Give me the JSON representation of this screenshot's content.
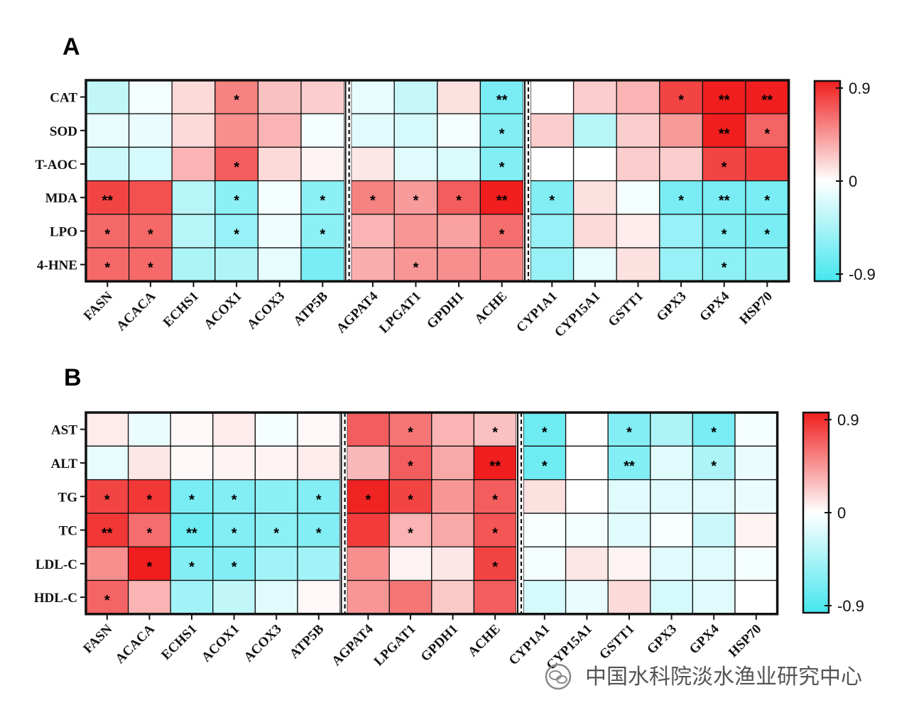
{
  "chart_data": [
    {
      "type": "heatmap",
      "panel": "A",
      "rows": [
        "CAT",
        "SOD",
        "T-AOC",
        "MDA",
        "LPO",
        "4-HNE"
      ],
      "columns": [
        "FASN",
        "ACACA",
        "ECHS1",
        "ACOX1",
        "ACOX3",
        "ATP5B",
        "AGPAT4",
        "LPGAT1",
        "GPDH1",
        "ACHE",
        "CYP1A1",
        "CYP15A1",
        "GSTT1",
        "GPX3",
        "GPX4",
        "HSP70"
      ],
      "group_separators_after_column": [
        5,
        9
      ],
      "values": [
        [
          -0.3,
          -0.05,
          0.15,
          0.5,
          0.25,
          0.2,
          -0.12,
          -0.28,
          0.12,
          -0.65,
          0.0,
          0.2,
          0.3,
          0.75,
          0.9,
          0.9
        ],
        [
          -0.12,
          -0.1,
          0.15,
          0.45,
          0.3,
          -0.05,
          -0.15,
          -0.2,
          -0.05,
          -0.6,
          0.2,
          -0.35,
          0.2,
          0.4,
          0.9,
          0.62
        ],
        [
          -0.25,
          -0.2,
          0.3,
          0.65,
          0.15,
          0.05,
          0.1,
          -0.15,
          -0.18,
          -0.6,
          0.0,
          0.0,
          0.2,
          0.2,
          0.75,
          0.78
        ],
        [
          0.75,
          0.7,
          -0.35,
          -0.55,
          -0.05,
          -0.55,
          0.5,
          0.4,
          0.65,
          0.95,
          -0.6,
          0.12,
          -0.05,
          -0.65,
          -0.65,
          -0.65
        ],
        [
          0.6,
          0.6,
          -0.35,
          -0.5,
          -0.08,
          -0.55,
          0.3,
          0.42,
          0.38,
          0.58,
          -0.5,
          0.15,
          0.08,
          -0.5,
          -0.6,
          -0.65
        ],
        [
          0.6,
          0.6,
          -0.4,
          -0.38,
          -0.12,
          -0.65,
          0.32,
          0.42,
          0.45,
          0.48,
          -0.5,
          -0.12,
          0.12,
          -0.5,
          -0.55,
          -0.55
        ]
      ],
      "significance": [
        [
          "",
          "",
          "",
          "*",
          "",
          "",
          "",
          "",
          "",
          "**",
          "",
          "",
          "",
          "*",
          "**",
          "**"
        ],
        [
          "",
          "",
          "",
          "",
          "",
          "",
          "",
          "",
          "",
          "*",
          "",
          "",
          "",
          "",
          "**",
          "*"
        ],
        [
          "",
          "",
          "",
          "*",
          "",
          "",
          "",
          "",
          "",
          "*",
          "",
          "",
          "",
          "",
          "*",
          ""
        ],
        [
          "**",
          "",
          "",
          "*",
          "",
          "*",
          "*",
          "*",
          "*",
          "**",
          "*",
          "",
          "",
          "*",
          "**",
          "*"
        ],
        [
          "*",
          "*",
          "",
          "*",
          "",
          "*",
          "",
          "",
          "",
          "*",
          "",
          "",
          "",
          "",
          "*",
          "*"
        ],
        [
          "*",
          "*",
          "",
          "",
          "",
          "",
          "",
          "*",
          "",
          "",
          "",
          "",
          "",
          "",
          "*",
          ""
        ]
      ],
      "colorbar": {
        "min": -0.9,
        "max": 0.9,
        "ticks": [
          "0.9",
          "0",
          "-0.9"
        ],
        "low_color": "#45e6ee",
        "mid_color": "#ffffff",
        "high_color": "#f01e1e"
      }
    },
    {
      "type": "heatmap",
      "panel": "B",
      "rows": [
        "AST",
        "ALT",
        "TG",
        "TC",
        "LDL-C",
        "HDL-C"
      ],
      "columns": [
        "FASN",
        "ACACA",
        "ECHS1",
        "ACOX1",
        "ACOX3",
        "ATP5B",
        "AGPAT4",
        "LPGAT1",
        "GPDH1",
        "ACHE",
        "CYP1A1",
        "CYP15A1",
        "GSTT1",
        "GPX3",
        "GPX4",
        "HSP70"
      ],
      "group_separators_after_column": [
        5,
        9
      ],
      "values": [
        [
          0.08,
          -0.1,
          0.03,
          0.08,
          -0.05,
          0.03,
          0.65,
          0.55,
          0.3,
          0.25,
          -0.7,
          0.0,
          -0.6,
          -0.4,
          -0.65,
          -0.05
        ],
        [
          -0.12,
          0.1,
          0.03,
          0.05,
          0.05,
          0.08,
          0.28,
          0.65,
          0.35,
          0.95,
          -0.7,
          0.0,
          -0.6,
          -0.15,
          -0.4,
          -0.1
        ],
        [
          0.75,
          0.8,
          -0.65,
          -0.6,
          -0.55,
          -0.6,
          0.88,
          0.75,
          0.42,
          0.65,
          0.12,
          0.0,
          -0.15,
          -0.15,
          -0.15,
          -0.1
        ],
        [
          0.8,
          0.58,
          -0.7,
          -0.6,
          -0.55,
          -0.6,
          0.78,
          0.3,
          0.35,
          0.68,
          -0.03,
          -0.05,
          -0.15,
          -0.03,
          -0.25,
          0.05
        ],
        [
          0.45,
          0.92,
          -0.6,
          -0.6,
          -0.45,
          -0.45,
          0.45,
          0.05,
          0.1,
          0.75,
          -0.05,
          0.1,
          0.05,
          -0.15,
          -0.15,
          -0.05
        ],
        [
          0.62,
          0.3,
          -0.45,
          -0.3,
          -0.15,
          0.03,
          0.42,
          0.55,
          0.22,
          0.65,
          -0.2,
          -0.1,
          0.15,
          -0.2,
          -0.15,
          0.0
        ]
      ],
      "significance": [
        [
          "",
          "",
          "",
          "",
          "",
          "",
          "",
          "*",
          "",
          "*",
          "*",
          "",
          "*",
          "",
          "*",
          ""
        ],
        [
          "",
          "",
          "",
          "",
          "",
          "",
          "",
          "*",
          "",
          "**",
          "*",
          "",
          "**",
          "",
          "*",
          ""
        ],
        [
          "*",
          "*",
          "*",
          "*",
          "",
          "*",
          "*",
          "*",
          "",
          "*",
          "",
          "",
          "",
          "",
          "",
          ""
        ],
        [
          "**",
          "*",
          "**",
          "*",
          "*",
          "*",
          "",
          "*",
          "",
          "*",
          "",
          "",
          "",
          "",
          "",
          ""
        ],
        [
          "",
          "*",
          "*",
          "*",
          "",
          "",
          "",
          "",
          "",
          "*",
          "",
          "",
          "",
          "",
          "",
          ""
        ],
        [
          "*",
          "",
          "",
          "",
          "",
          "",
          "",
          "",
          "",
          "",
          "",
          "",
          "",
          "",
          "",
          ""
        ]
      ],
      "colorbar": {
        "min": -0.9,
        "max": 0.9,
        "ticks": [
          "0.9",
          "0",
          "-0.9"
        ],
        "low_color": "#45e6ee",
        "mid_color": "#ffffff",
        "high_color": "#f01e1e"
      }
    }
  ],
  "watermark": {
    "text": "中国水科院淡水渔业研究中心",
    "icon": "wechat-logo-icon"
  }
}
